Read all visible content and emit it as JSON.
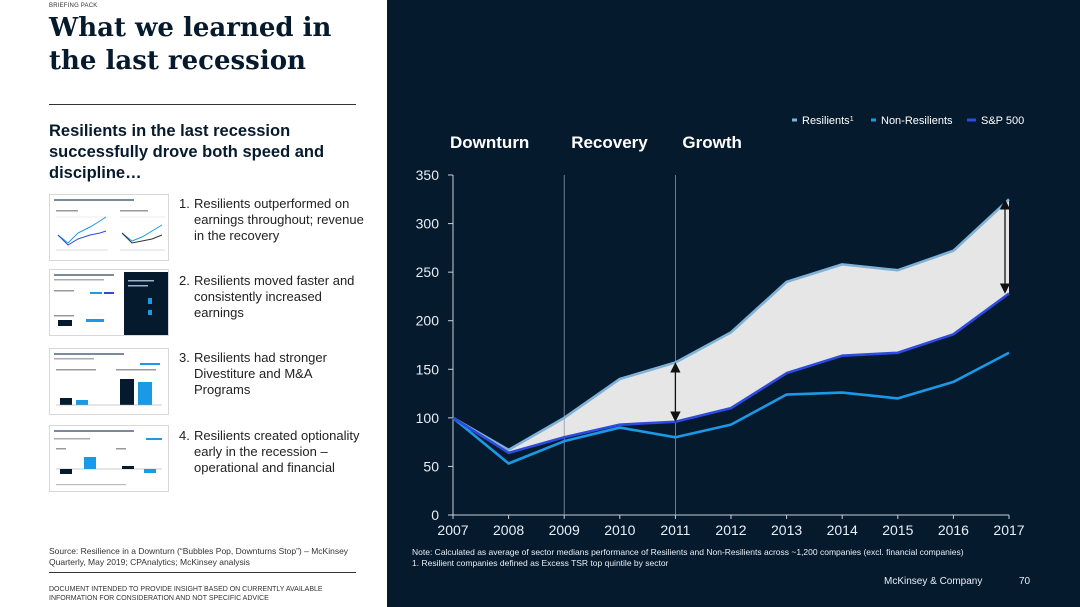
{
  "header": {
    "pack_label": "BRIEFING PACK",
    "title": "What we learned in the last recession"
  },
  "left": {
    "subtitle": "Resilients in the last recession successfully drove both speed and discipline…",
    "items": [
      {
        "number": "1.",
        "text": "Resilients outperformed on earnings throughout; revenue in the recovery"
      },
      {
        "number": "2.",
        "text": "Resilients moved faster and consistently increased earnings"
      },
      {
        "number": "3.",
        "text": "Resilients had stronger Divestiture and M&A Programs"
      },
      {
        "number": "4.",
        "text": "Resilients created optionality early in the recession – operational and financial"
      }
    ],
    "source": "Source: Resilience in a Downturn (“Bubbles Pop, Downturns Stop”) – McKinsey Quarterly, May 2019; CPAnalytics; McKinsey analysis",
    "disclaimer": "DOCUMENT INTENDED TO PROVIDE INSIGHT BASED ON CURRENTLY AVAILABLE INFORMATION FOR CONSIDERATION AND NOT SPECIFIC ADVICE"
  },
  "colors": {
    "background_dark": "#061a2e",
    "resilients": "#7fb2d6",
    "non_resilients": "#1a9ae6",
    "sp500": "#2c4be0",
    "band_fill": "#e6e6e6",
    "text_light": "#e8eef4"
  },
  "chart_data": {
    "type": "line",
    "title": "",
    "xlabel": "",
    "ylabel": "",
    "x": [
      2007,
      2008,
      2009,
      2010,
      2011,
      2012,
      2013,
      2014,
      2015,
      2016,
      2017
    ],
    "ylim": [
      0,
      350
    ],
    "yticks": [
      0,
      50,
      100,
      150,
      200,
      250,
      300,
      350
    ],
    "phases": [
      "Downturn",
      "Recovery",
      "Growth"
    ],
    "phase_dividers": [
      2009,
      2011
    ],
    "legend": [
      {
        "label": "Resilients",
        "sup": "1"
      },
      {
        "label": "Non-Resilients",
        "sup": ""
      },
      {
        "label": "S&P 500",
        "sup": ""
      }
    ],
    "legend_position": "top-right",
    "series": [
      {
        "name": "Resilients",
        "values": [
          100,
          67,
          100,
          140,
          157,
          188,
          240,
          258,
          252,
          272,
          325
        ]
      },
      {
        "name": "Non-Resilients",
        "values": [
          100,
          53,
          76,
          90,
          80,
          93,
          124,
          126,
          120,
          137,
          167
        ]
      },
      {
        "name": "S&P 500",
        "values": [
          100,
          64,
          80,
          93,
          96,
          110,
          146,
          164,
          167,
          186,
          228
        ]
      }
    ],
    "gap_arrows_at": [
      2011,
      2017
    ]
  },
  "footer": {
    "note_line1": "Note: Calculated as average of sector medians performance of Resilients and Non-Resilients across ~1,200 companies (excl. financial companies)",
    "note_line2": "1. Resilient companies defined as Excess TSR top quintile by sector",
    "brand": "McKinsey & Company",
    "page": "70"
  }
}
